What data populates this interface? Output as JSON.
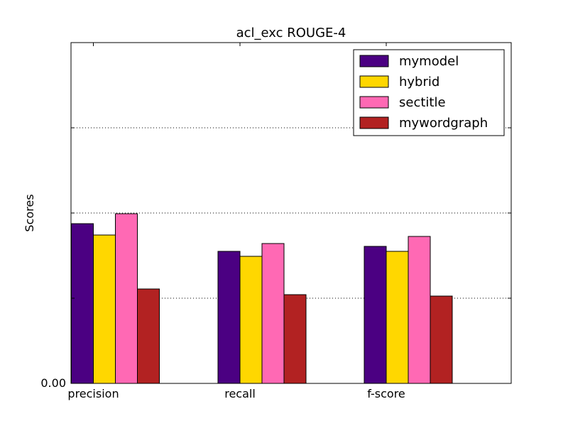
{
  "chart_data": {
    "type": "bar",
    "title": "acl_exc ROUGE-4",
    "xlabel": "",
    "ylabel": "Scores",
    "categories": [
      "precision",
      "recall",
      "f-score"
    ],
    "series": [
      {
        "name": "mymodel",
        "color": "#4b0082",
        "values": [
          0.0225,
          0.0186,
          0.0193
        ]
      },
      {
        "name": "hybrid",
        "color": "#ffd700",
        "values": [
          0.0209,
          0.0179,
          0.0186
        ]
      },
      {
        "name": "sectitle",
        "color": "#ff69b4",
        "values": [
          0.0239,
          0.0197,
          0.0207
        ]
      },
      {
        "name": "mywordgraph",
        "color": "#b22222",
        "values": [
          0.0133,
          0.0125,
          0.0123
        ]
      }
    ],
    "ylim": [
      0,
      0.048
    ],
    "ytick_labels": [
      "0.00"
    ],
    "grid": "y-dotted",
    "legend_position": "top-right"
  }
}
